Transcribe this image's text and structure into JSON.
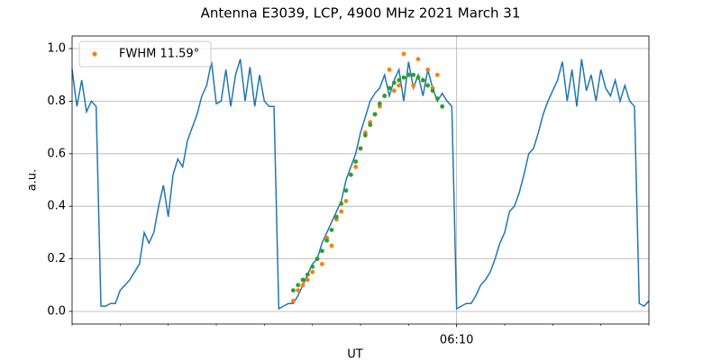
{
  "chart_data": {
    "type": "line",
    "title": "Antenna E3039, LCP, 4900 MHz 2021 March 31",
    "xlabel": "UT",
    "ylabel": "a.u.",
    "xlim": [
      0,
      240
    ],
    "ylim": [
      -0.048,
      1.048
    ],
    "xticks": [
      {
        "value": 160,
        "label": "06:10"
      }
    ],
    "xminorticks": [
      0,
      20,
      40,
      60,
      80,
      100,
      120,
      140,
      180,
      200,
      220,
      240
    ],
    "yticks": [
      {
        "value": 0,
        "label": "0.0"
      },
      {
        "value": 0.2,
        "label": "0.2"
      },
      {
        "value": 0.4,
        "label": "0.4"
      },
      {
        "value": 0.6,
        "label": "0.6"
      },
      {
        "value": 0.8,
        "label": "0.8"
      },
      {
        "value": 1,
        "label": "1.0"
      }
    ],
    "grid": true,
    "legend": "upper left",
    "series": [
      {
        "kind": "line",
        "color": "#1f77b4",
        "x": [
          0,
          2,
          4,
          6,
          8,
          10,
          12,
          14,
          16,
          18,
          20,
          22,
          24,
          26,
          28,
          30,
          32,
          34,
          36,
          38,
          40,
          42,
          44,
          46,
          48,
          50,
          52,
          54,
          56,
          58,
          60,
          62,
          64,
          66,
          68,
          70,
          72,
          74,
          76,
          78,
          80,
          82,
          84,
          86,
          88,
          90,
          92,
          94,
          96,
          98,
          100,
          102,
          104,
          106,
          108,
          110,
          112,
          114,
          116,
          118,
          120,
          122,
          124,
          126,
          128,
          130,
          132,
          134,
          136,
          138,
          140,
          142,
          144,
          146,
          148,
          150,
          152,
          154,
          156,
          158,
          160,
          162,
          164,
          166,
          168,
          170,
          172,
          174,
          176,
          178,
          180,
          182,
          184,
          186,
          188,
          190,
          192,
          194,
          196,
          198,
          200,
          202,
          204,
          206,
          208,
          210,
          212,
          214,
          216,
          218,
          220,
          222,
          224,
          226,
          228,
          230,
          232,
          234,
          236,
          238,
          240
        ],
        "values": [
          0.92,
          0.78,
          0.88,
          0.76,
          0.8,
          0.78,
          0.02,
          0.02,
          0.03,
          0.03,
          0.08,
          0.1,
          0.12,
          0.15,
          0.18,
          0.3,
          0.26,
          0.3,
          0.4,
          0.48,
          0.36,
          0.52,
          0.58,
          0.55,
          0.65,
          0.7,
          0.75,
          0.82,
          0.86,
          0.95,
          0.79,
          0.8,
          0.92,
          0.78,
          0.9,
          0.96,
          0.8,
          0.93,
          0.78,
          0.9,
          0.8,
          0.78,
          0.78,
          0.01,
          0.02,
          0.03,
          0.03,
          0.06,
          0.1,
          0.14,
          0.18,
          0.2,
          0.26,
          0.3,
          0.34,
          0.38,
          0.42,
          0.5,
          0.55,
          0.6,
          0.68,
          0.74,
          0.8,
          0.83,
          0.85,
          0.9,
          0.82,
          0.88,
          0.92,
          0.8,
          0.95,
          0.85,
          0.9,
          0.82,
          0.92,
          0.85,
          0.8,
          0.83,
          0.8,
          0.78,
          0.01,
          0.02,
          0.03,
          0.03,
          0.06,
          0.1,
          0.12,
          0.15,
          0.2,
          0.26,
          0.3,
          0.38,
          0.4,
          0.45,
          0.52,
          0.6,
          0.62,
          0.68,
          0.75,
          0.8,
          0.84,
          0.88,
          0.95,
          0.8,
          0.92,
          0.78,
          0.96,
          0.84,
          0.9,
          0.8,
          0.92,
          0.85,
          0.82,
          0.88,
          0.8,
          0.86,
          0.8,
          0.78,
          0.03,
          0.02,
          0.04
        ]
      },
      {
        "kind": "scatter",
        "name": "FWHM 11.59°",
        "color": "#ff7f0e",
        "x": [
          92,
          94,
          96,
          98,
          100,
          102,
          104,
          106,
          108,
          110,
          112,
          114,
          116,
          118,
          120,
          122,
          124,
          126,
          128,
          130,
          132,
          134,
          136,
          138,
          140,
          142,
          144,
          146,
          148,
          150,
          152,
          154
        ],
        "values": [
          0.04,
          0.08,
          0.1,
          0.12,
          0.15,
          0.2,
          0.18,
          0.28,
          0.25,
          0.35,
          0.38,
          0.42,
          0.52,
          0.55,
          0.62,
          0.68,
          0.72,
          0.75,
          0.78,
          0.82,
          0.92,
          0.84,
          0.86,
          0.98,
          0.9,
          0.86,
          0.96,
          0.88,
          0.92,
          0.85,
          0.9,
          0.78
        ]
      },
      {
        "kind": "scatter",
        "color": "#2ca02c",
        "x": [
          92,
          94,
          96,
          98,
          100,
          102,
          104,
          106,
          108,
          110,
          112,
          114,
          116,
          118,
          120,
          122,
          124,
          126,
          128,
          130,
          132,
          134,
          136,
          138,
          140,
          142,
          144,
          146,
          148,
          150,
          152,
          154
        ],
        "values": [
          0.08,
          0.1,
          0.12,
          0.14,
          0.17,
          0.2,
          0.23,
          0.27,
          0.31,
          0.36,
          0.41,
          0.46,
          0.52,
          0.57,
          0.62,
          0.67,
          0.71,
          0.75,
          0.79,
          0.82,
          0.85,
          0.87,
          0.88,
          0.89,
          0.9,
          0.9,
          0.89,
          0.88,
          0.86,
          0.84,
          0.81,
          0.78
        ]
      }
    ]
  }
}
